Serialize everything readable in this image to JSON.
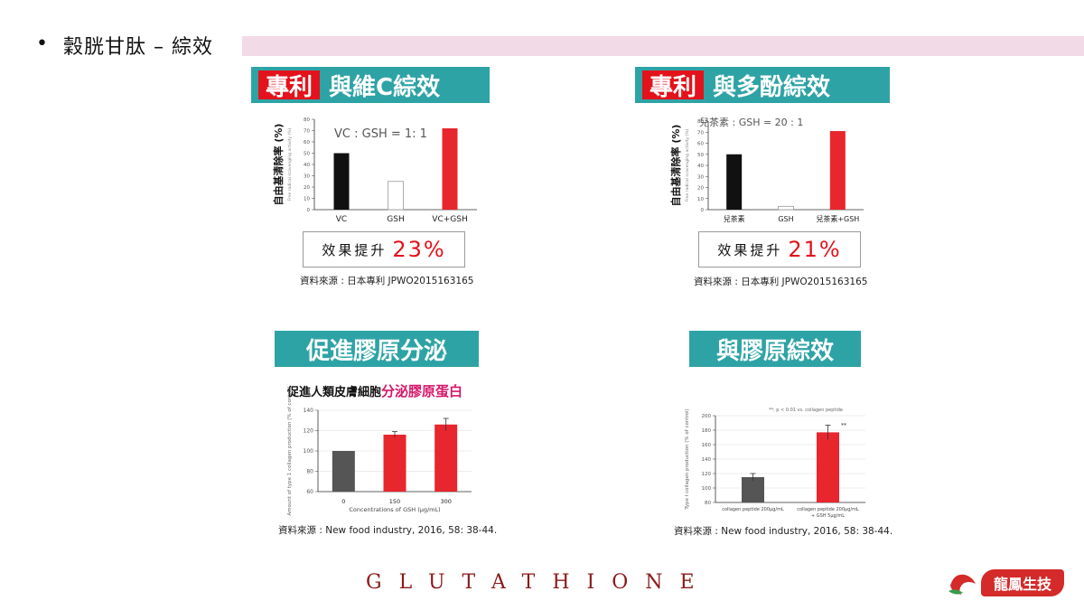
{
  "header": {
    "bullet": "•",
    "title": "穀胱甘肽 – 綜效"
  },
  "panels": [
    {
      "banner_highlight": "專利",
      "banner_text": "與維C綜效",
      "effect_label": "效果提升",
      "effect_value": "23%",
      "source": "資料來源 : 日本專利 JPWO2015163165",
      "chart_data": {
        "type": "bar",
        "annotation": "VC : GSH = 1: 1",
        "ylabel": "自由基清除率 (%)",
        "ylabel_en": "Free radical scavenging activity (%)",
        "categories": [
          "VC",
          "GSH",
          "VC+GSH"
        ],
        "values": [
          50,
          25,
          72
        ],
        "ylim": [
          0,
          80
        ],
        "yticks": [
          "0",
          "10",
          "20",
          "30",
          "40",
          "50",
          "60",
          "70",
          "80"
        ],
        "colors": [
          "#111111",
          "#ffffff",
          "#e8262d"
        ]
      }
    },
    {
      "banner_highlight": "專利",
      "banner_text": "與多酚綜效",
      "effect_label": "效果提升",
      "effect_value": "21%",
      "source": "資料來源 : 日本專利 JPWO2015163165",
      "chart_data": {
        "type": "bar",
        "annotation": "兒茶素 : GSH = 20 : 1",
        "ylabel": "自由基清除率 (%)",
        "ylabel_en": "Free radical scavenging activity (%)",
        "categories": [
          "兒茶素",
          "GSH",
          "兒茶素+GSH"
        ],
        "values": [
          50,
          3,
          71
        ],
        "ylim": [
          0,
          80
        ],
        "yticks": [
          "0",
          "10",
          "20",
          "30",
          "40",
          "50",
          "60",
          "70",
          "80"
        ],
        "colors": [
          "#111111",
          "#ffffff",
          "#e8262d"
        ]
      }
    },
    {
      "banner_text": "促進膠原分泌",
      "caption_plain": "促進人類皮膚細胞",
      "caption_pink": "分泌膠原蛋白",
      "source": "資料來源 : New food industry, 2016, 58: 38-44.",
      "chart_data": {
        "type": "bar",
        "ylabel": "Amount of type 1 collagen production (% of control)",
        "xlabel": "Concentrations of GSH (μg/mL)",
        "categories": [
          "0",
          "150",
          "300"
        ],
        "values": [
          100,
          116,
          126
        ],
        "errors": [
          0,
          3,
          6
        ],
        "ylim": [
          60,
          140
        ],
        "yticks": [
          "60",
          "80",
          "100",
          "120",
          "140"
        ],
        "colors": [
          "#555555",
          "#e8262d",
          "#e8262d"
        ]
      }
    },
    {
      "banner_text": "與膠原綜效",
      "source": "資料來源 : New food industry, 2016, 58: 38-44.",
      "chart_data": {
        "type": "bar",
        "annotation": "**: p < 0.01 vs. collagen peptide",
        "ylabel": "Type I collagen production (% of control)",
        "categories": [
          "collagen peptide 200μg/mL",
          "collagen peptide 200μg/mL + GSH 5μg/mL"
        ],
        "values": [
          115,
          177
        ],
        "errors": [
          5,
          10
        ],
        "sig": [
          "",
          "**"
        ],
        "ylim": [
          80,
          200
        ],
        "yticks": [
          "80",
          "100",
          "120",
          "140",
          "160",
          "180",
          "200"
        ],
        "colors": [
          "#555555",
          "#e8262d"
        ]
      }
    }
  ],
  "footer": {
    "word": "GLUTATHIONE",
    "logo_text": "龍鳳生技"
  }
}
